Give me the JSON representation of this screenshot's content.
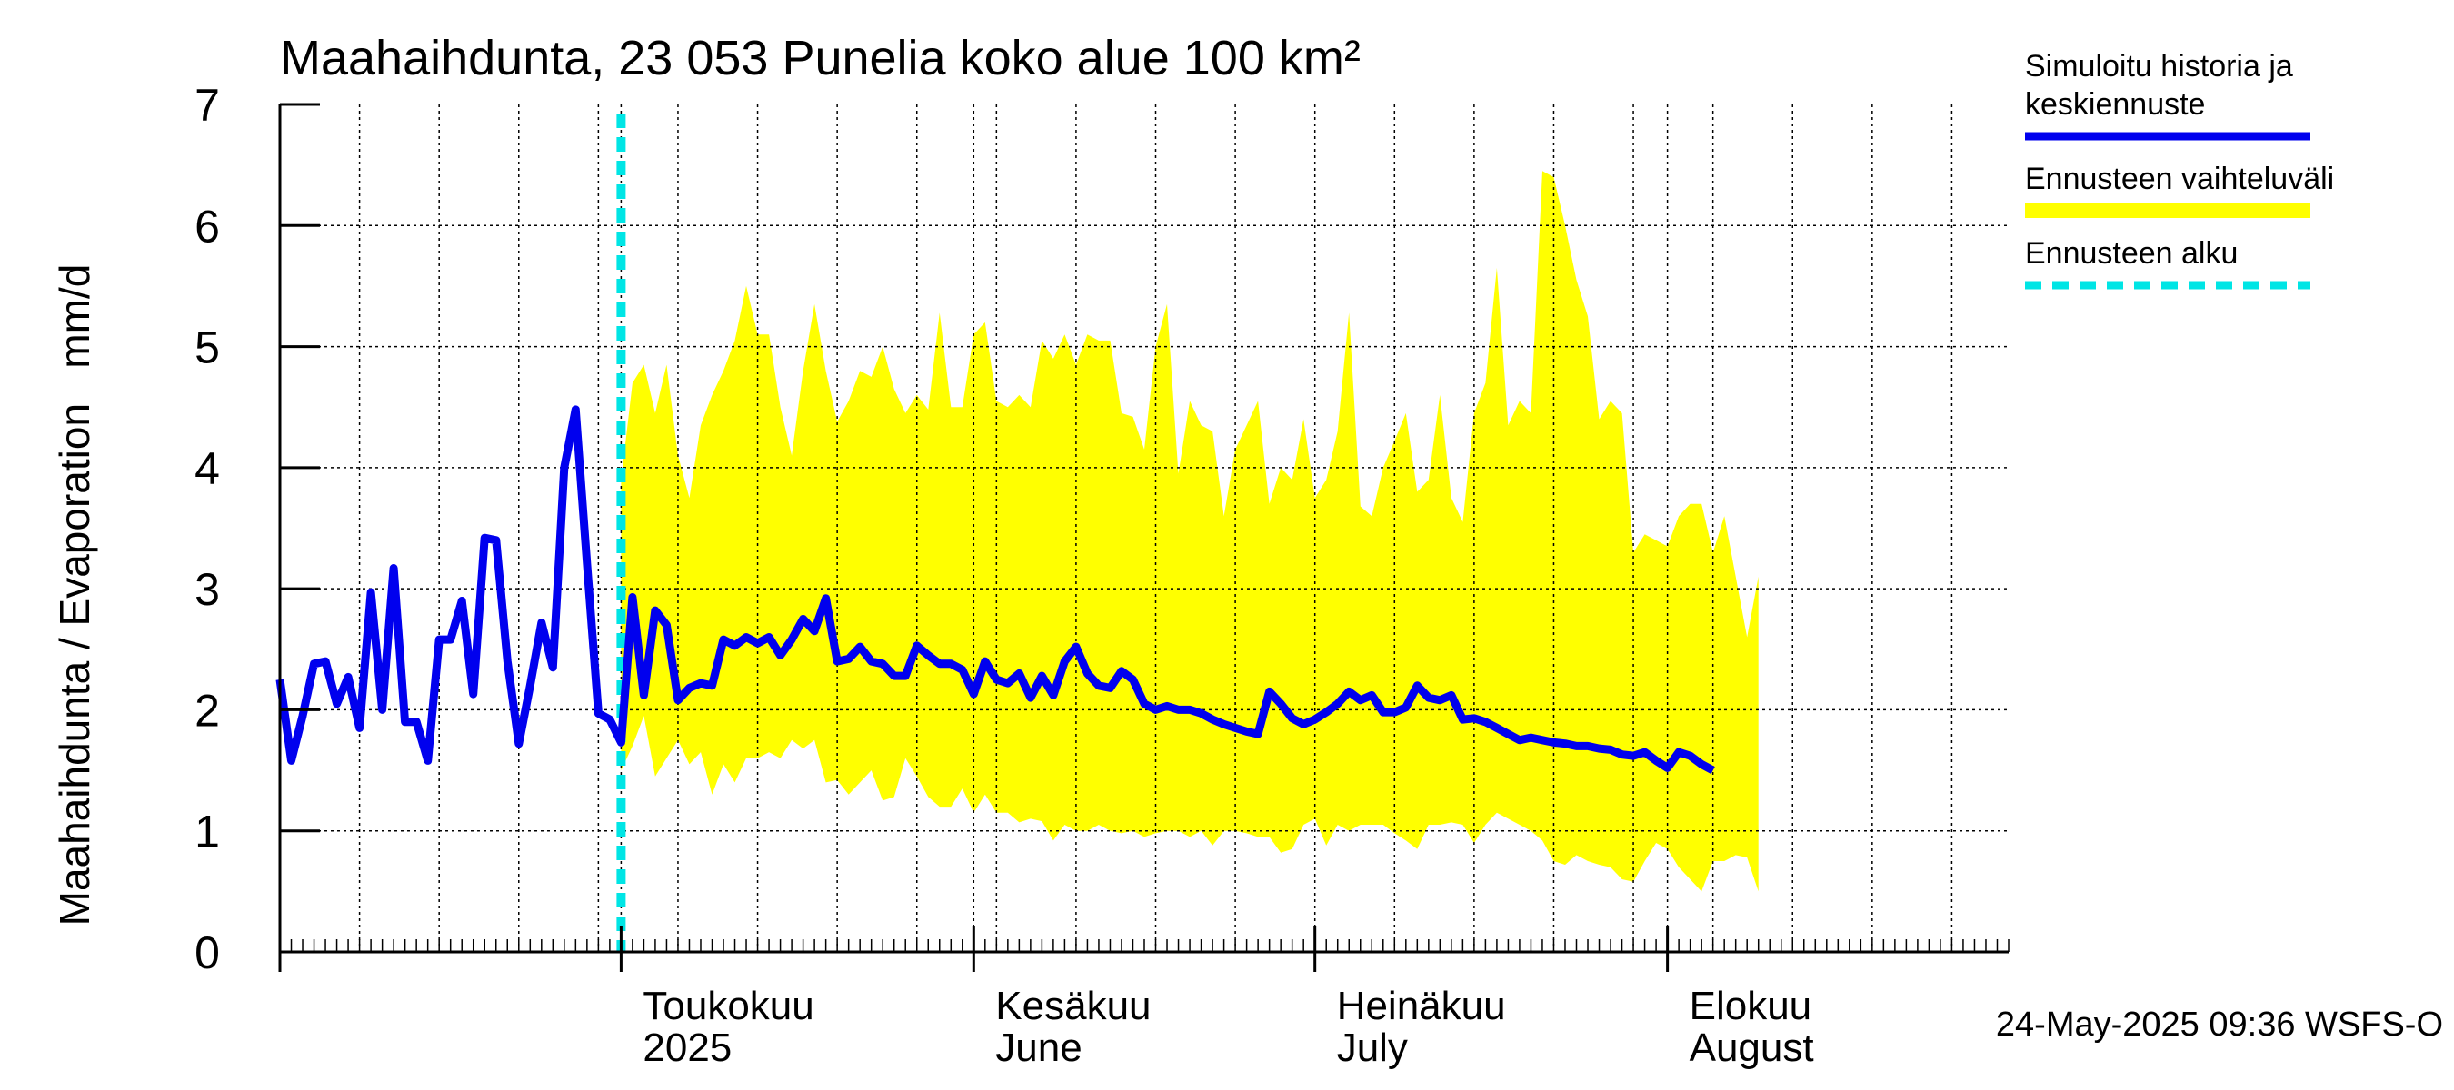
{
  "chart_data": {
    "type": "line",
    "title": "Maahaihdunta, 23 053 Punelia koko alue 100 km²",
    "ylabel": "Maahaihdunta / Evaporation   mm/d",
    "xlabel": "",
    "ylim": [
      0,
      7
    ],
    "yticks": [
      0,
      1,
      2,
      3,
      4,
      5,
      6,
      7
    ],
    "xlim": [
      "2025-04-01",
      "2025-08-31"
    ],
    "grid": true,
    "x_tick_labels": [
      {
        "date": "2025-05-01",
        "line1": "Toukokuu",
        "line2": "2025"
      },
      {
        "date": "2025-06-01",
        "line1": "Kesäkuu",
        "line2": "June"
      },
      {
        "date": "2025-07-01",
        "line1": "Heinäkuu",
        "line2": "July"
      },
      {
        "date": "2025-08-01",
        "line1": "Elokuu",
        "line2": "August"
      }
    ],
    "forecast_start": "2025-05-01",
    "legend_position": "right",
    "legend": [
      {
        "label_lines": [
          "Simuloitu historia ja",
          "keskiennuste"
        ],
        "color": "#0000ee",
        "style": "solid"
      },
      {
        "label_lines": [
          "Ennusteen vaihteluväli"
        ],
        "color": "#ffff00",
        "style": "band"
      },
      {
        "label_lines": [
          "Ennusteen alku"
        ],
        "color": "#00e5e5",
        "style": "dashed"
      }
    ],
    "series": [
      {
        "name": "Simuloitu historia ja keskiennuste",
        "color": "#0000ee",
        "start_date": "2025-04-01",
        "values": [
          2.25,
          1.58,
          1.95,
          2.38,
          2.4,
          2.05,
          2.27,
          1.85,
          2.97,
          2.0,
          3.17,
          1.9,
          1.9,
          1.58,
          2.58,
          2.58,
          2.9,
          2.13,
          3.42,
          3.4,
          2.4,
          1.72,
          2.2,
          2.72,
          2.35,
          4.0,
          4.48,
          3.2,
          1.97,
          1.92,
          1.73,
          2.93,
          2.12,
          2.82,
          2.7,
          2.08,
          2.18,
          2.22,
          2.2,
          2.58,
          2.53,
          2.6,
          2.55,
          2.6,
          2.45,
          2.58,
          2.75,
          2.65,
          2.92,
          2.4,
          2.42,
          2.52,
          2.4,
          2.38,
          2.28,
          2.28,
          2.53,
          2.45,
          2.38,
          2.38,
          2.33,
          2.13,
          2.4,
          2.25,
          2.22,
          2.3,
          2.1,
          2.28,
          2.12,
          2.4,
          2.52,
          2.3,
          2.2,
          2.18,
          2.32,
          2.25,
          2.05,
          2.0,
          2.03,
          2.0,
          2.0,
          1.97,
          1.92,
          1.88,
          1.85,
          1.82,
          1.8,
          2.15,
          2.05,
          1.93,
          1.88,
          1.92,
          1.98,
          2.05,
          2.15,
          2.08,
          2.12,
          1.98,
          1.98,
          2.02,
          2.2,
          2.1,
          2.08,
          2.12,
          1.92,
          1.93,
          1.9,
          1.85,
          1.8,
          1.75,
          1.77,
          1.75,
          1.73,
          1.72,
          1.7,
          1.7,
          1.68,
          1.67,
          1.63,
          1.62,
          1.65,
          1.58,
          1.52,
          1.65,
          1.62,
          1.55,
          1.5
        ]
      }
    ],
    "band": {
      "name": "Ennusteen vaihteluväli",
      "color": "#ffff00",
      "start_date": "2025-05-01",
      "upper": [
        3.9,
        4.7,
        4.85,
        4.45,
        4.85,
        4.1,
        3.75,
        4.35,
        4.6,
        4.8,
        5.05,
        5.5,
        5.1,
        5.1,
        4.5,
        4.1,
        4.8,
        5.35,
        4.8,
        4.38,
        4.55,
        4.8,
        4.75,
        5.0,
        4.65,
        4.45,
        4.6,
        4.48,
        5.28,
        4.5,
        4.5,
        5.1,
        5.2,
        4.55,
        4.5,
        4.6,
        4.5,
        5.05,
        4.9,
        5.1,
        4.85,
        5.1,
        5.05,
        5.05,
        4.45,
        4.42,
        4.15,
        5.0,
        5.35,
        3.95,
        4.55,
        4.35,
        4.3,
        3.6,
        4.15,
        4.35,
        4.55,
        3.7,
        4.0,
        3.9,
        4.4,
        3.75,
        3.9,
        4.3,
        5.28,
        3.68,
        3.6,
        4.0,
        4.22,
        4.45,
        3.8,
        3.9,
        4.6,
        3.75,
        3.55,
        4.45,
        4.7,
        5.65,
        4.35,
        4.55,
        4.45,
        6.45,
        6.4,
        6.0,
        5.55,
        5.25,
        4.4,
        4.55,
        4.45,
        3.3,
        3.45,
        3.4,
        3.35,
        3.6,
        3.7,
        3.7,
        3.3,
        3.6,
        3.1,
        2.6,
        3.1
      ],
      "lower": [
        1.5,
        1.7,
        1.95,
        1.45,
        1.6,
        1.75,
        1.55,
        1.65,
        1.3,
        1.55,
        1.4,
        1.6,
        1.6,
        1.65,
        1.6,
        1.75,
        1.68,
        1.75,
        1.4,
        1.42,
        1.3,
        1.4,
        1.5,
        1.25,
        1.28,
        1.6,
        1.45,
        1.28,
        1.2,
        1.2,
        1.35,
        1.15,
        1.3,
        1.15,
        1.15,
        1.07,
        1.1,
        1.08,
        0.92,
        1.05,
        1.0,
        1.0,
        1.05,
        1.0,
        0.98,
        1.0,
        0.95,
        0.98,
        1.0,
        1.0,
        0.95,
        1.0,
        0.88,
        1.0,
        1.0,
        0.98,
        0.95,
        0.95,
        0.82,
        0.85,
        1.05,
        1.1,
        0.88,
        1.05,
        1.0,
        1.05,
        1.05,
        1.05,
        0.98,
        0.92,
        0.85,
        1.05,
        1.05,
        1.07,
        1.05,
        0.9,
        1.05,
        1.15,
        1.1,
        1.05,
        1.0,
        0.92,
        0.75,
        0.72,
        0.8,
        0.75,
        0.72,
        0.7,
        0.6,
        0.58,
        0.75,
        0.9,
        0.85,
        0.7,
        0.6,
        0.5,
        0.75,
        0.75,
        0.8,
        0.78,
        0.5
      ]
    }
  },
  "footer": {
    "timestamp": "24-May-2025 09:36 WSFS-O"
  }
}
